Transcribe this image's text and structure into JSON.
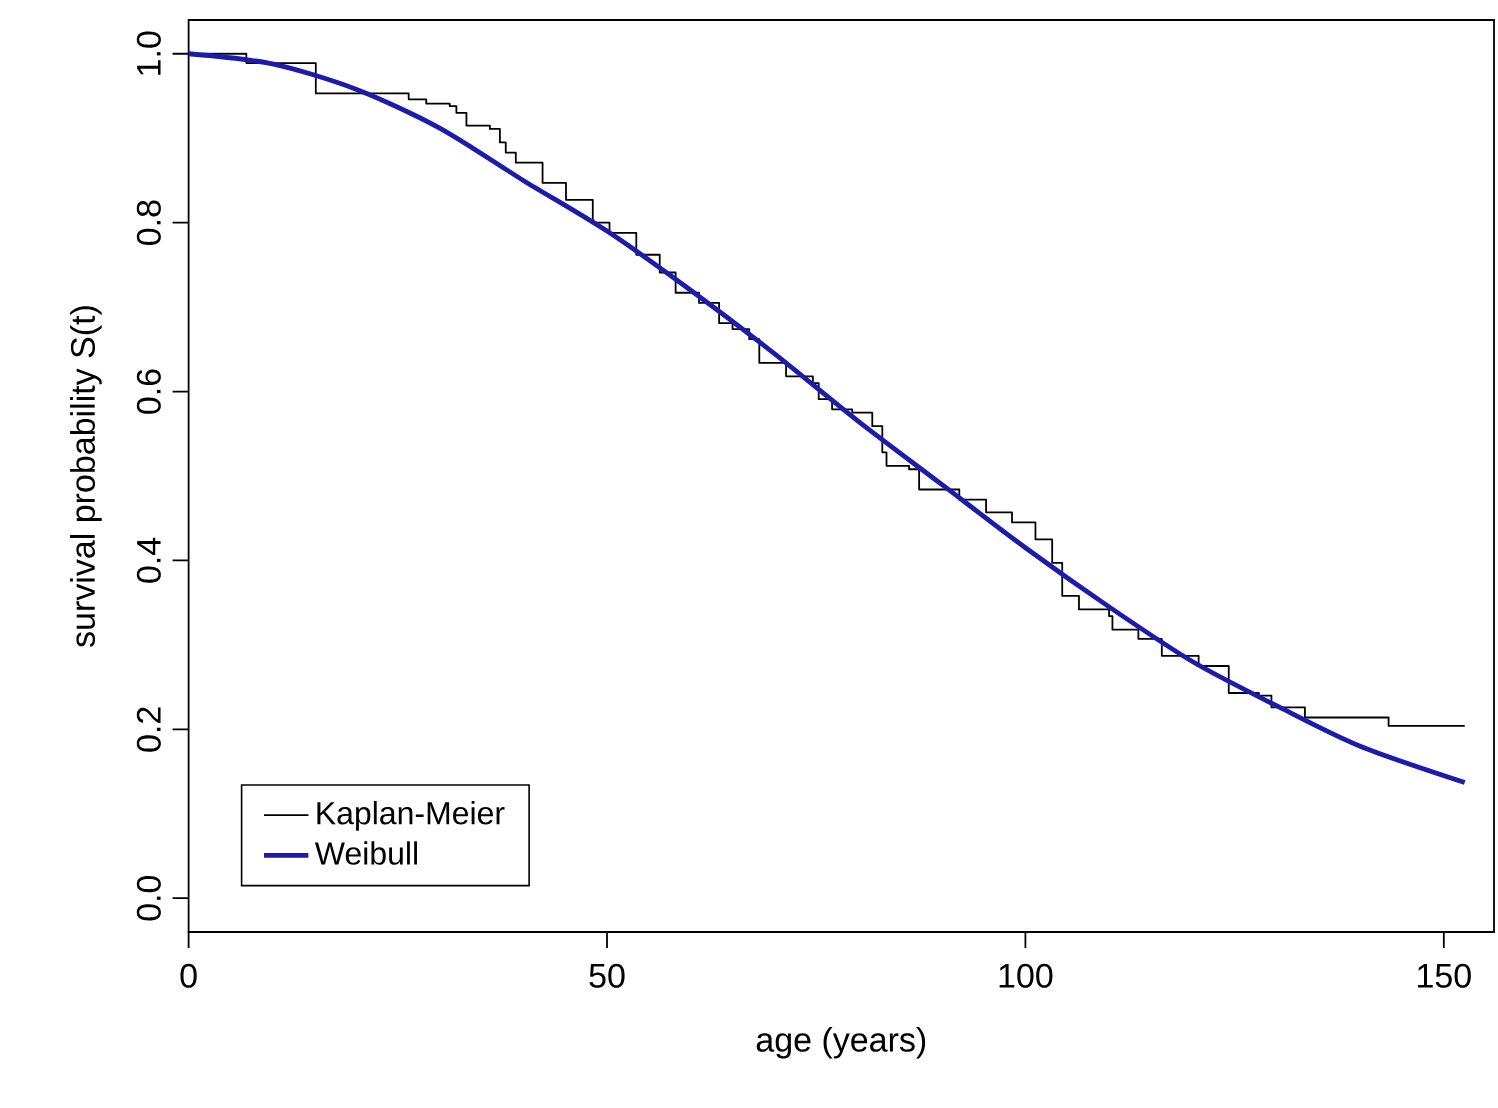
{
  "chart_data": {
    "type": "line",
    "xlabel": "age (years)",
    "ylabel": "survival probability S(t)",
    "xlim": [
      0,
      156
    ],
    "ylim": [
      -0.04,
      1.04
    ],
    "xticks": [
      0,
      50,
      100,
      150
    ],
    "yticks": [
      {
        "value": 0,
        "label": "0.0"
      },
      {
        "value": 0.2,
        "label": "0.2"
      },
      {
        "value": 0.4,
        "label": "0.4"
      },
      {
        "value": 0.6,
        "label": "0.6"
      },
      {
        "value": 0.8,
        "label": "0.8"
      },
      {
        "value": 1.0,
        "label": "1.0"
      }
    ],
    "legend": "bottom left",
    "grid": false,
    "marker": "none",
    "series": [
      {
        "name": "Kaplan-Meier",
        "type": "step",
        "color": "#000000",
        "x": [
          0,
          6.9,
          15.2,
          26.3,
          28.4,
          31.2,
          32.0,
          33.2,
          36.0,
          37.2,
          37.9,
          39.1,
          42.3,
          45.1,
          48.3,
          50.3,
          53.5,
          56.3,
          58.2,
          61.0,
          63.4,
          65.0,
          67.0,
          68.2,
          71.4,
          74.6,
          75.3,
          76.9,
          79.3,
          81.7,
          82.9,
          83.4,
          86.1,
          87.3,
          92.1,
          95.3,
          98.4,
          101.2,
          103.2,
          104.4,
          106.4,
          110.0,
          110.4,
          113.5,
          116.3,
          120.7,
          124.3,
          127.9,
          129.4,
          133.4,
          143.4,
          152.5
        ],
        "values": [
          1.0,
          0.989,
          0.953,
          0.946,
          0.941,
          0.938,
          0.93,
          0.915,
          0.911,
          0.895,
          0.883,
          0.871,
          0.847,
          0.827,
          0.8,
          0.788,
          0.762,
          0.741,
          0.717,
          0.705,
          0.681,
          0.674,
          0.662,
          0.634,
          0.618,
          0.61,
          0.591,
          0.579,
          0.575,
          0.559,
          0.528,
          0.512,
          0.508,
          0.484,
          0.472,
          0.457,
          0.445,
          0.425,
          0.397,
          0.358,
          0.342,
          0.334,
          0.318,
          0.307,
          0.287,
          0.275,
          0.243,
          0.24,
          0.226,
          0.214,
          0.204,
          0.204
        ]
      },
      {
        "name": "Weibull",
        "type": "line",
        "color": "#1c1cac",
        "x": [
          0,
          10,
          20,
          30,
          40,
          50,
          60,
          70,
          80,
          90,
          100,
          110,
          120,
          130,
          140,
          152.5
        ],
        "values": [
          1.0,
          0.988,
          0.958,
          0.912,
          0.85,
          0.79,
          0.72,
          0.645,
          0.565,
          0.49,
          0.415,
          0.345,
          0.28,
          0.228,
          0.18,
          0.137
        ]
      }
    ]
  }
}
